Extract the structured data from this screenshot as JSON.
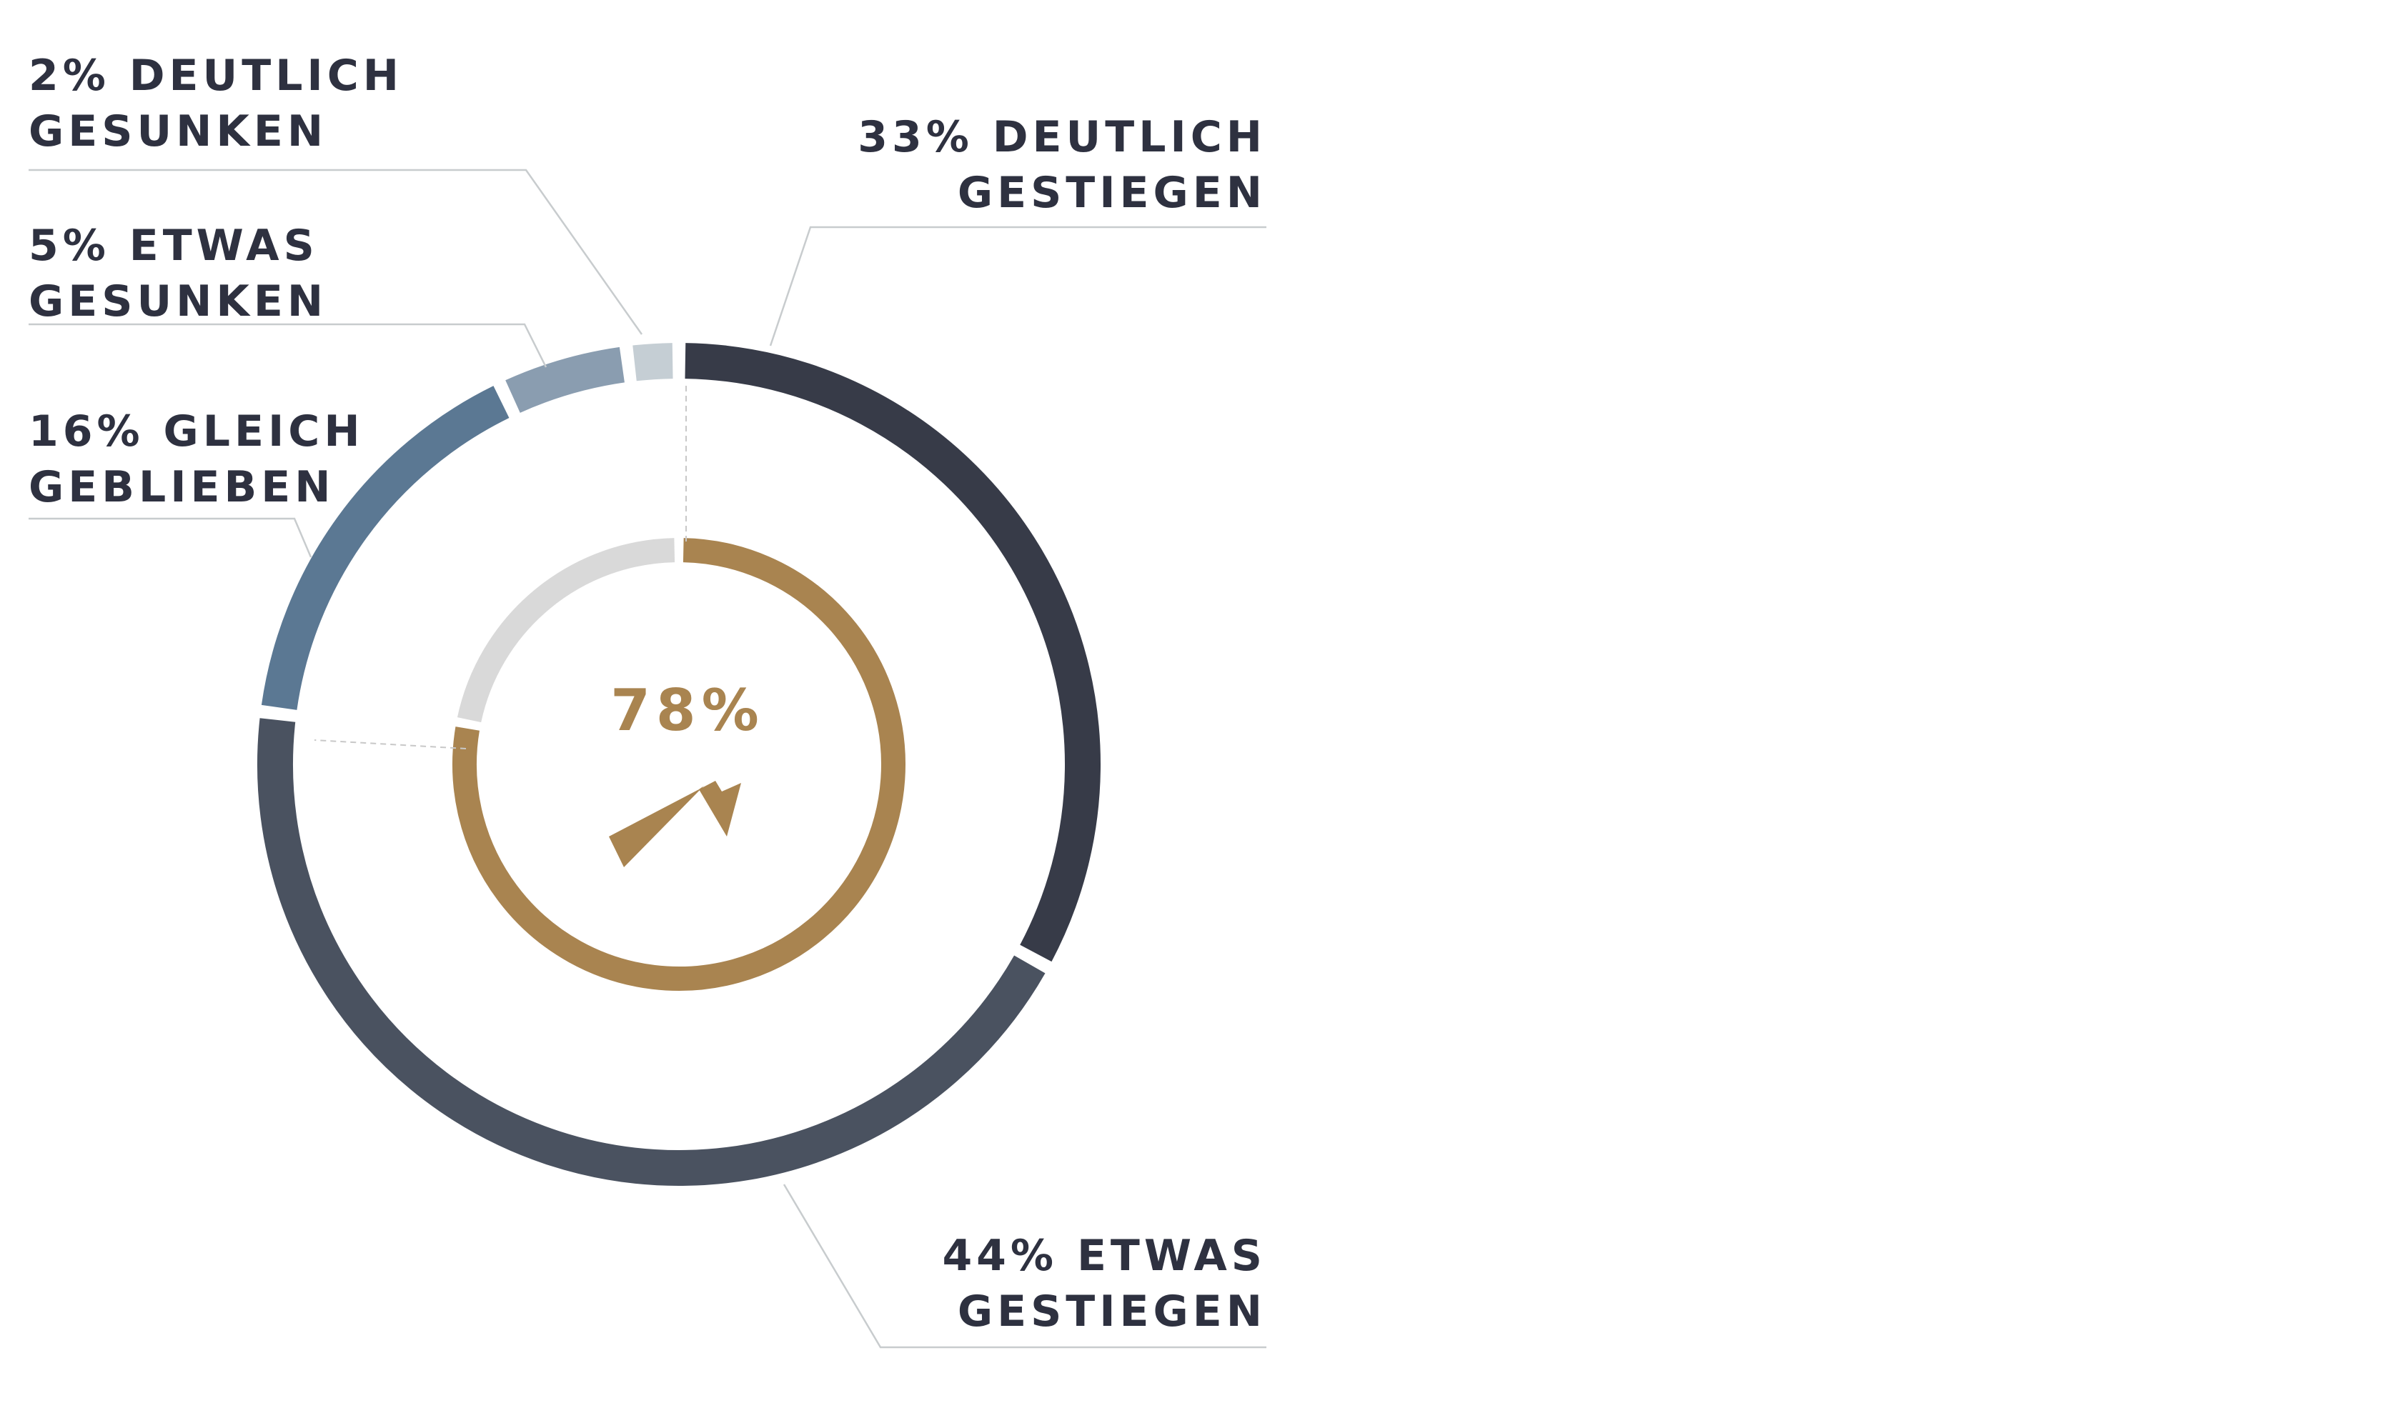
{
  "chart_data": {
    "type": "pie",
    "outer_ring": {
      "segments": [
        {
          "value": 33,
          "line1": "33% DEUTLICH",
          "line2": "GESTIEGEN",
          "color": "#373b48"
        },
        {
          "value": 44,
          "line1": "44% ETWAS",
          "line2": "GESTIEGEN",
          "color": "#4a5260"
        },
        {
          "value": 16,
          "line1": "16% GLEICH",
          "line2": "GEBLIEBEN",
          "color": "#5b7893"
        },
        {
          "value": 5,
          "line1": "5% ETWAS",
          "line2": "GESUNKEN",
          "color": "#8a9db0"
        },
        {
          "value": 2,
          "line1": "2% DEUTLICH",
          "line2": "GESUNKEN",
          "color": "#c5ced4"
        }
      ]
    },
    "inner_ring": {
      "value": 78,
      "label": "78%",
      "color": "#a98450",
      "rest_color": "#d9d9d9",
      "icon": "arrow-up-right-icon"
    }
  }
}
